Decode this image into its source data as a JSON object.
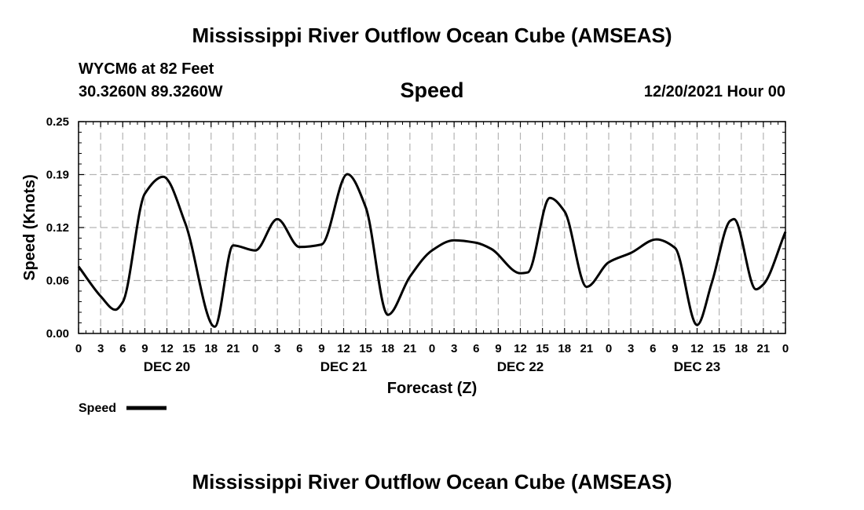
{
  "header": {
    "title": "Mississippi River Outflow Ocean Cube (AMSEAS)",
    "station": "WYCM6 at 82 Feet",
    "coords": "30.3260N  89.3260W",
    "variable": "Speed",
    "run_time": "12/20/2021 Hour 00"
  },
  "footer": {
    "title": "Mississippi River Outflow Ocean Cube (AMSEAS)"
  },
  "chart_data": {
    "type": "line",
    "title": "Speed",
    "xlabel": "Forecast (Z)",
    "ylabel": "Speed (Knots)",
    "xlim": [
      0,
      96
    ],
    "ylim": [
      0,
      0.25
    ],
    "grid": true,
    "yticks": [
      "0.00",
      "0.06",
      "0.12",
      "0.19",
      "0.25"
    ],
    "ytick_values": [
      0.0,
      0.0625,
      0.125,
      0.1875,
      0.25
    ],
    "xtick_hours": [
      0,
      3,
      6,
      9,
      12,
      15,
      18,
      21,
      24,
      27,
      30,
      33,
      36,
      39,
      42,
      45,
      48,
      51,
      54,
      57,
      60,
      63,
      66,
      69,
      72,
      75,
      78,
      81,
      84,
      87,
      90,
      93,
      96
    ],
    "xtick_labels": [
      "0",
      "3",
      "6",
      "9",
      "12",
      "15",
      "18",
      "21",
      "0",
      "3",
      "6",
      "9",
      "12",
      "15",
      "18",
      "21",
      "0",
      "3",
      "6",
      "9",
      "12",
      "15",
      "18",
      "21",
      "0",
      "3",
      "6",
      "9",
      "12",
      "15",
      "18",
      "21",
      "0"
    ],
    "day_labels": [
      {
        "hour": 12,
        "label": "DEC 20"
      },
      {
        "hour": 36,
        "label": "DEC 21"
      },
      {
        "hour": 60,
        "label": "DEC 22"
      },
      {
        "hour": 84,
        "label": "DEC 23"
      }
    ],
    "legend": {
      "label": "Speed",
      "position": "bottom-left"
    },
    "series": [
      {
        "name": "Speed",
        "x": [
          0,
          3,
          5,
          6,
          9,
          11.5,
          14.5,
          18.5,
          21,
          24,
          27,
          30,
          33,
          36.5,
          39,
          42,
          45,
          48,
          51,
          54,
          56,
          60,
          61,
          64,
          66,
          69,
          72,
          75,
          78.5,
          81,
          84,
          86,
          88.5,
          89,
          92,
          93,
          96
        ],
        "y": [
          0.079,
          0.044,
          0.028,
          0.037,
          0.165,
          0.185,
          0.13,
          0.008,
          0.104,
          0.098,
          0.135,
          0.102,
          0.105,
          0.188,
          0.149,
          0.022,
          0.067,
          0.098,
          0.11,
          0.107,
          0.1,
          0.071,
          0.072,
          0.16,
          0.144,
          0.055,
          0.084,
          0.095,
          0.111,
          0.101,
          0.01,
          0.06,
          0.133,
          0.135,
          0.052,
          0.058,
          0.12
        ]
      }
    ]
  }
}
